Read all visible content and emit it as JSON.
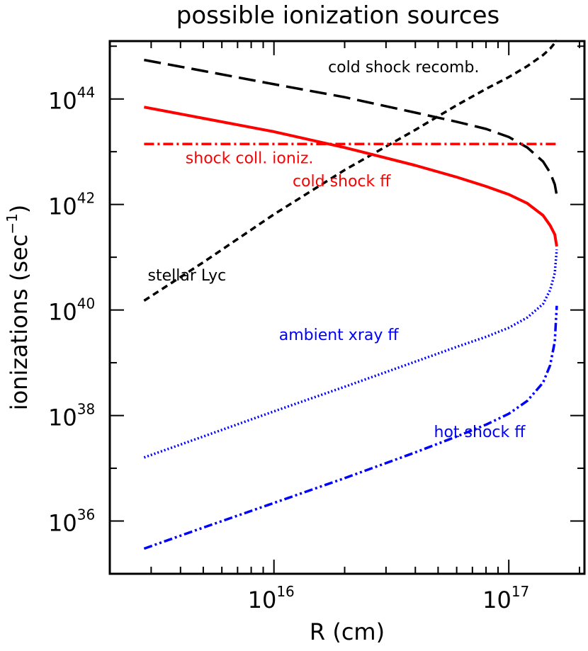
{
  "chart_data": {
    "type": "line",
    "title": "possible ionization sources",
    "xlabel": "R (cm)",
    "ylabel_prefix": "ionizations (sec",
    "ylabel_exp": "−1",
    "ylabel_suffix": ")",
    "x_scale": "log",
    "y_scale": "log",
    "xlim": [
      2000000000000000.0,
      2.1e+17
    ],
    "ylim": [
      1e+35,
      1.25e+45
    ],
    "x_ticks": [
      {
        "value": 1e+16,
        "base": "10",
        "exp": "16"
      },
      {
        "value": 1e+17,
        "base": "10",
        "exp": "17"
      }
    ],
    "y_ticks": [
      {
        "value": 1e+36,
        "base": "10",
        "exp": "36"
      },
      {
        "value": 1e+38,
        "base": "10",
        "exp": "38"
      },
      {
        "value": 1e+40,
        "base": "10",
        "exp": "40"
      },
      {
        "value": 1e+42,
        "base": "10",
        "exp": "42"
      },
      {
        "value": 1e+44,
        "base": "10",
        "exp": "44"
      }
    ],
    "grid": false,
    "series": [
      {
        "name": "cold shock recomb.",
        "color": "#000000",
        "style": "long-dash",
        "x": [
          2800000000000000.0,
          5000000000000000.0,
          1e+16,
          2e+16,
          4e+16,
          6e+16,
          8e+16,
          1e+17,
          1.2e+17,
          1.4e+17,
          1.5e+17,
          1.57e+17,
          1.6e+17
        ],
        "y": [
          5.5e+44,
          3.4e+44,
          1.9e+44,
          1.08e+44,
          5.5e+43,
          3.7e+43,
          2.7e+43,
          1.9e+43,
          1.2e+43,
          6.5e+42,
          4e+42,
          2.4e+42,
          1.5e+42
        ]
      },
      {
        "name": "stellar Lyc",
        "color": "#000000",
        "style": "dash",
        "x": [
          2800000000000000.0,
          5000000000000000.0,
          1e+16,
          2e+16,
          4e+16,
          6e+16,
          8e+16,
          1e+17,
          1.2e+17,
          1.4e+17,
          1.5e+17,
          1.57e+17,
          1.6e+17
        ],
        "y": [
          1.5e+40,
          8e+40,
          6.5e+41,
          4.5e+42,
          2.6e+43,
          7.6e+43,
          1.55e+44,
          2.6e+44,
          4.2e+44,
          6.8e+44,
          9e+44,
          1.15e+45,
          1.3e+45
        ]
      },
      {
        "name": "shock coll. ioniz.",
        "color": "#ff0000",
        "style": "dash-dot",
        "x": [
          2800000000000000.0,
          1.6e+17
        ],
        "y": [
          1.4e+43,
          1.4e+43
        ]
      },
      {
        "name": "cold shock ff",
        "color": "#ff0000",
        "style": "solid",
        "x": [
          2800000000000000.0,
          5000000000000000.0,
          1e+16,
          2e+16,
          4e+16,
          6e+16,
          8e+16,
          1e+17,
          1.2e+17,
          1.4e+17,
          1.5e+17,
          1.57e+17,
          1.6e+17
        ],
        "y": [
          7e+43,
          4.3e+43,
          2.4e+43,
          1.2e+43,
          5.5e+42,
          3.3e+42,
          2.2e+42,
          1.55e+42,
          1.05e+42,
          6.2e+41,
          4e+41,
          2.7e+41,
          1.6e+41
        ]
      },
      {
        "name": "ambient xray ff",
        "color": "#0000ff",
        "style": "dotted",
        "x": [
          2800000000000000.0,
          5000000000000000.0,
          1e+16,
          2e+16,
          4e+16,
          6e+16,
          8e+16,
          1e+17,
          1.2e+17,
          1.4e+17,
          1.5e+17,
          1.57e+17,
          1.6e+17
        ],
        "y": [
          1.6e+37,
          4e+37,
          1.2e+38,
          3.5e+38,
          1.05e+39,
          2e+39,
          3.1e+39,
          4.6e+39,
          7.2e+39,
          1.3e+40,
          2.4e+40,
          5e+40,
          1.4e+41
        ]
      },
      {
        "name": "hot shock ff",
        "color": "#0000ff",
        "style": "dash-dot-dot",
        "x": [
          2800000000000000.0,
          5000000000000000.0,
          1e+16,
          2e+16,
          4e+16,
          6e+16,
          8e+16,
          1e+17,
          1.2e+17,
          1.4e+17,
          1.5e+17,
          1.57e+17,
          1.6e+17
        ],
        "y": [
          3e+35,
          7.5e+35,
          2.2e+36,
          6.5e+36,
          2e+37,
          4e+37,
          6.7e+37,
          1.08e+38,
          1.9e+38,
          4.2e+38,
          9e+38,
          2.5e+39,
          1.2e+40
        ]
      }
    ],
    "annotations": [
      {
        "text": "cold shock recomb.",
        "x": 1.7e+16,
        "y": 3.2e+44,
        "color": "#000000"
      },
      {
        "text": "shock coll. ioniz.",
        "x": 4200000000000000.0,
        "y": 6e+42,
        "color": "#ff0000"
      },
      {
        "text": "cold shock ff",
        "x": 1.2e+16,
        "y": 2.2e+42,
        "color": "#ff0000"
      },
      {
        "text": "stellar Lyc",
        "x": 2900000000000000.0,
        "y": 3.6e+40,
        "color": "#000000"
      },
      {
        "text": "ambient xray ff",
        "x": 1.05e+16,
        "y": 2.7e+39,
        "color": "#0000ff"
      },
      {
        "text": "hot shock ff",
        "x": 4.8e+16,
        "y": 3.9e+37,
        "color": "#0000ff"
      }
    ]
  }
}
